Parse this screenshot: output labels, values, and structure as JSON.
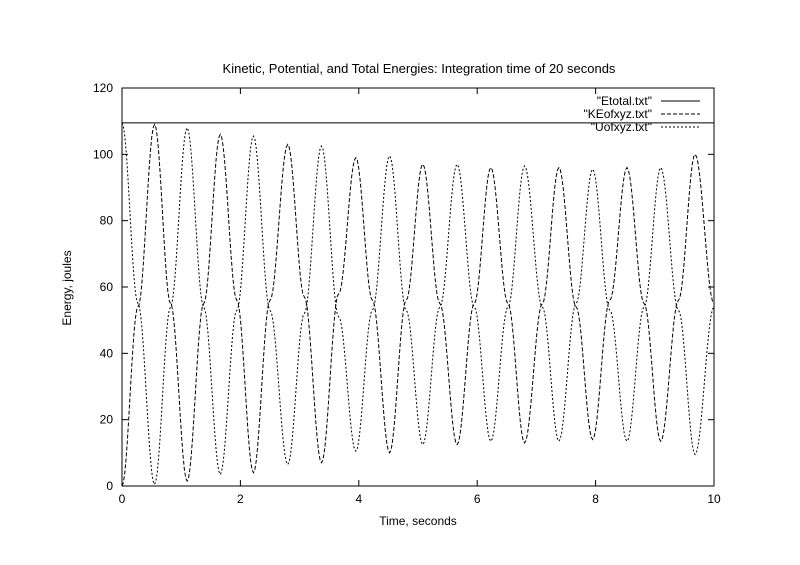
{
  "chart_data": {
    "type": "line",
    "title": "Kinetic, Potential, and Total Energies: Integration time of 20 seconds",
    "xlabel": "Time, seconds",
    "ylabel": "Energy, joules",
    "xlim": [
      0,
      10
    ],
    "ylim": [
      0,
      120
    ],
    "x_ticks": [
      "0",
      "2",
      "4",
      "6",
      "8",
      "10"
    ],
    "y_ticks": [
      "0",
      "20",
      "40",
      "60",
      "80",
      "100",
      "120"
    ],
    "grid": false,
    "legend_position": "top-right",
    "line_color": "#000000",
    "series": [
      {
        "name": "\"Etotal.txt\"",
        "style": "solid",
        "x": [
          0,
          10
        ],
        "y": [
          109.5,
          109.5
        ]
      },
      {
        "name": "\"KEofxyz.txt\"",
        "style": "dashed",
        "x": [
          0,
          0.27,
          0.55,
          0.82,
          1.1,
          1.38,
          1.66,
          1.94,
          2.22,
          2.5,
          2.8,
          3.08,
          3.37,
          3.66,
          3.95,
          4.23,
          4.52,
          4.8,
          5.08,
          5.37,
          5.66,
          5.95,
          6.23,
          6.52,
          6.8,
          7.1,
          7.38,
          7.67,
          7.95,
          8.24,
          8.53,
          8.82,
          9.1,
          9.4,
          9.68,
          10
        ],
        "y": [
          0,
          54,
          109,
          55,
          1.5,
          55,
          106,
          56,
          4,
          56,
          103,
          57,
          7,
          58,
          99,
          56,
          10,
          56,
          97,
          55,
          12.5,
          55,
          96,
          55,
          13,
          55,
          96,
          54,
          14,
          56,
          96,
          55,
          13.5,
          56,
          100,
          55
        ]
      },
      {
        "name": "\"Uofxyz.txt\"",
        "style": "dotted",
        "x": [
          0,
          0.27,
          0.55,
          0.82,
          1.1,
          1.38,
          1.66,
          1.94,
          2.22,
          2.5,
          2.8,
          3.08,
          3.37,
          3.66,
          3.95,
          4.23,
          4.52,
          4.8,
          5.08,
          5.37,
          5.66,
          5.95,
          6.23,
          6.52,
          6.8,
          7.1,
          7.38,
          7.67,
          7.95,
          8.24,
          8.53,
          8.82,
          9.1,
          9.4,
          9.68,
          10
        ],
        "y": [
          109.5,
          55,
          0.5,
          54,
          108,
          54,
          3.5,
          53,
          105.5,
          53,
          6.5,
          52,
          102.5,
          51,
          10.5,
          53,
          99.5,
          53,
          12.5,
          54,
          97,
          54,
          13.5,
          54,
          96.5,
          54,
          13.5,
          55,
          95.5,
          53,
          13.5,
          54,
          96,
          53,
          9.5,
          54
        ]
      }
    ]
  }
}
